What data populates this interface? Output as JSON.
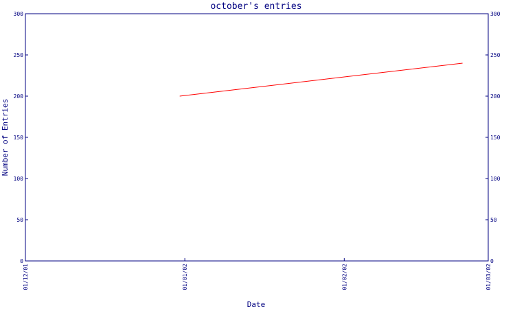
{
  "chart_data": {
    "type": "line",
    "title": "october's entries",
    "xlabel": "Date",
    "ylabel": "Number of Entries",
    "x_ticks": [
      "01/12/01",
      "01/01/02",
      "01/02/02",
      "01/03/02"
    ],
    "ylim": [
      0,
      300
    ],
    "y_ticks": [
      0,
      50,
      100,
      150,
      200,
      250,
      300
    ],
    "y_tick_labels": [
      "0",
      "50",
      "100",
      "150",
      "200",
      "250",
      "300"
    ],
    "series": [
      {
        "x": [
          "2001-12-31",
          "2002-02-24"
        ],
        "values": [
          200,
          240
        ]
      }
    ],
    "grid": false,
    "colors": {
      "axis": "#000080",
      "line": "#ff0000",
      "background": "#ffffff"
    }
  }
}
